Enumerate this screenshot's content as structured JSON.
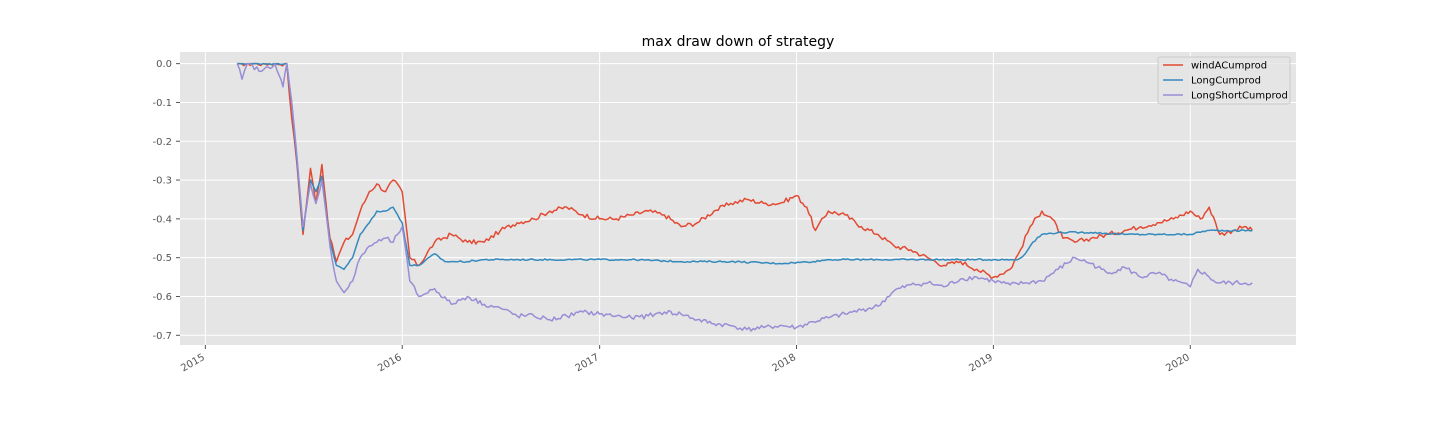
{
  "chart_data": {
    "type": "line",
    "title": "max draw down of strategy",
    "xlabel": "",
    "ylabel": "",
    "x_ticks": [
      "2015",
      "2016",
      "2017",
      "2018",
      "2019",
      "2020"
    ],
    "y_ticks": [
      "0.0",
      "-0.1",
      "-0.2",
      "-0.3",
      "-0.4",
      "-0.5",
      "-0.6",
      "-0.7"
    ],
    "xlim": [
      "2014-11-15",
      "2020-07-15"
    ],
    "ylim": [
      -0.725,
      0.03
    ],
    "grid": true,
    "legend_position": "top-right",
    "series": [
      {
        "name": "windACumprod",
        "color": "#e24a33",
        "points": [
          [
            "2015-03-01",
            0.0
          ],
          [
            "2015-06-01",
            0.0
          ],
          [
            "2015-06-10",
            -0.14
          ],
          [
            "2015-06-20",
            -0.26
          ],
          [
            "2015-07-01",
            -0.44
          ],
          [
            "2015-07-15",
            -0.27
          ],
          [
            "2015-07-25",
            -0.36
          ],
          [
            "2015-08-05",
            -0.26
          ],
          [
            "2015-08-20",
            -0.45
          ],
          [
            "2015-09-01",
            -0.51
          ],
          [
            "2015-09-15",
            -0.46
          ],
          [
            "2015-10-01",
            -0.44
          ],
          [
            "2015-10-15",
            -0.38
          ],
          [
            "2015-11-01",
            -0.33
          ],
          [
            "2015-11-15",
            -0.31
          ],
          [
            "2015-12-01",
            -0.33
          ],
          [
            "2015-12-15",
            -0.3
          ],
          [
            "2016-01-01",
            -0.33
          ],
          [
            "2016-01-15",
            -0.5
          ],
          [
            "2016-02-01",
            -0.52
          ],
          [
            "2016-03-01",
            -0.46
          ],
          [
            "2016-04-01",
            -0.44
          ],
          [
            "2016-05-01",
            -0.46
          ],
          [
            "2016-06-01",
            -0.46
          ],
          [
            "2016-07-01",
            -0.43
          ],
          [
            "2016-08-01",
            -0.41
          ],
          [
            "2016-09-01",
            -0.4
          ],
          [
            "2016-10-01",
            -0.38
          ],
          [
            "2016-11-01",
            -0.37
          ],
          [
            "2016-12-01",
            -0.39
          ],
          [
            "2017-01-01",
            -0.4
          ],
          [
            "2017-02-01",
            -0.4
          ],
          [
            "2017-03-01",
            -0.39
          ],
          [
            "2017-04-01",
            -0.38
          ],
          [
            "2017-05-01",
            -0.39
          ],
          [
            "2017-06-01",
            -0.42
          ],
          [
            "2017-07-01",
            -0.41
          ],
          [
            "2017-08-01",
            -0.38
          ],
          [
            "2017-09-01",
            -0.36
          ],
          [
            "2017-10-01",
            -0.35
          ],
          [
            "2017-11-01",
            -0.36
          ],
          [
            "2017-12-01",
            -0.36
          ],
          [
            "2018-01-01",
            -0.34
          ],
          [
            "2018-01-20",
            -0.37
          ],
          [
            "2018-02-05",
            -0.43
          ],
          [
            "2018-03-01",
            -0.38
          ],
          [
            "2018-04-01",
            -0.39
          ],
          [
            "2018-05-01",
            -0.42
          ],
          [
            "2018-06-01",
            -0.44
          ],
          [
            "2018-07-01",
            -0.47
          ],
          [
            "2018-08-01",
            -0.48
          ],
          [
            "2018-09-01",
            -0.5
          ],
          [
            "2018-10-01",
            -0.52
          ],
          [
            "2018-11-01",
            -0.51
          ],
          [
            "2018-12-01",
            -0.53
          ],
          [
            "2019-01-01",
            -0.55
          ],
          [
            "2019-02-01",
            -0.53
          ],
          [
            "2019-02-20",
            -0.48
          ],
          [
            "2019-03-10",
            -0.42
          ],
          [
            "2019-04-01",
            -0.38
          ],
          [
            "2019-04-20",
            -0.4
          ],
          [
            "2019-05-10",
            -0.45
          ],
          [
            "2019-06-01",
            -0.46
          ],
          [
            "2019-07-01",
            -0.45
          ],
          [
            "2019-08-01",
            -0.44
          ],
          [
            "2019-09-01",
            -0.43
          ],
          [
            "2019-10-01",
            -0.42
          ],
          [
            "2019-11-01",
            -0.41
          ],
          [
            "2019-12-01",
            -0.4
          ],
          [
            "2020-01-01",
            -0.38
          ],
          [
            "2020-01-20",
            -0.4
          ],
          [
            "2020-02-05",
            -0.37
          ],
          [
            "2020-02-25",
            -0.44
          ],
          [
            "2020-03-20",
            -0.43
          ],
          [
            "2020-04-10",
            -0.42
          ],
          [
            "2020-04-25",
            -0.43
          ]
        ]
      },
      {
        "name": "LongCumprod",
        "color": "#348abd",
        "points": [
          [
            "2015-03-01",
            0.0
          ],
          [
            "2015-06-01",
            0.0
          ],
          [
            "2015-06-10",
            -0.1
          ],
          [
            "2015-06-20",
            -0.25
          ],
          [
            "2015-07-01",
            -0.43
          ],
          [
            "2015-07-15",
            -0.3
          ],
          [
            "2015-07-25",
            -0.33
          ],
          [
            "2015-08-05",
            -0.29
          ],
          [
            "2015-08-20",
            -0.46
          ],
          [
            "2015-09-01",
            -0.52
          ],
          [
            "2015-09-15",
            -0.53
          ],
          [
            "2015-10-01",
            -0.5
          ],
          [
            "2015-10-15",
            -0.44
          ],
          [
            "2015-11-01",
            -0.41
          ],
          [
            "2015-11-15",
            -0.38
          ],
          [
            "2015-12-01",
            -0.38
          ],
          [
            "2015-12-15",
            -0.37
          ],
          [
            "2016-01-01",
            -0.41
          ],
          [
            "2016-01-15",
            -0.52
          ],
          [
            "2016-02-01",
            -0.52
          ],
          [
            "2016-03-01",
            -0.49
          ],
          [
            "2016-03-20",
            -0.51
          ],
          [
            "2016-04-01",
            -0.51
          ],
          [
            "2016-05-01",
            -0.51
          ],
          [
            "2016-06-01",
            -0.505
          ],
          [
            "2016-07-01",
            -0.505
          ],
          [
            "2016-09-01",
            -0.505
          ],
          [
            "2016-12-01",
            -0.505
          ],
          [
            "2017-03-01",
            -0.505
          ],
          [
            "2017-06-01",
            -0.51
          ],
          [
            "2017-09-01",
            -0.51
          ],
          [
            "2017-12-01",
            -0.515
          ],
          [
            "2018-02-01",
            -0.51
          ],
          [
            "2018-03-01",
            -0.505
          ],
          [
            "2018-06-01",
            -0.505
          ],
          [
            "2018-09-01",
            -0.505
          ],
          [
            "2018-12-01",
            -0.505
          ],
          [
            "2019-01-01",
            -0.505
          ],
          [
            "2019-02-15",
            -0.505
          ],
          [
            "2019-03-01",
            -0.49
          ],
          [
            "2019-03-15",
            -0.46
          ],
          [
            "2019-04-01",
            -0.44
          ],
          [
            "2019-05-01",
            -0.435
          ],
          [
            "2019-07-01",
            -0.435
          ],
          [
            "2019-09-01",
            -0.44
          ],
          [
            "2019-11-01",
            -0.44
          ],
          [
            "2020-01-01",
            -0.44
          ],
          [
            "2020-02-01",
            -0.43
          ],
          [
            "2020-04-25",
            -0.43
          ]
        ]
      },
      {
        "name": "LongShortCumprod",
        "color": "#988ed5",
        "points": [
          [
            "2015-03-01",
            0.0
          ],
          [
            "2015-03-10",
            -0.04
          ],
          [
            "2015-03-20",
            0.0
          ],
          [
            "2015-04-15",
            -0.02
          ],
          [
            "2015-05-10",
            0.0
          ],
          [
            "2015-05-25",
            -0.06
          ],
          [
            "2015-06-01",
            0.0
          ],
          [
            "2015-06-10",
            -0.1
          ],
          [
            "2015-06-20",
            -0.24
          ],
          [
            "2015-07-01",
            -0.42
          ],
          [
            "2015-07-15",
            -0.31
          ],
          [
            "2015-07-25",
            -0.36
          ],
          [
            "2015-08-05",
            -0.3
          ],
          [
            "2015-08-20",
            -0.47
          ],
          [
            "2015-09-01",
            -0.56
          ],
          [
            "2015-09-15",
            -0.59
          ],
          [
            "2015-10-01",
            -0.56
          ],
          [
            "2015-10-15",
            -0.5
          ],
          [
            "2015-11-01",
            -0.47
          ],
          [
            "2015-11-15",
            -0.46
          ],
          [
            "2015-12-01",
            -0.45
          ],
          [
            "2015-12-15",
            -0.46
          ],
          [
            "2016-01-01",
            -0.42
          ],
          [
            "2016-01-15",
            -0.56
          ],
          [
            "2016-02-01",
            -0.6
          ],
          [
            "2016-03-01",
            -0.58
          ],
          [
            "2016-04-01",
            -0.62
          ],
          [
            "2016-05-01",
            -0.6
          ],
          [
            "2016-06-01",
            -0.62
          ],
          [
            "2016-07-01",
            -0.63
          ],
          [
            "2016-08-01",
            -0.65
          ],
          [
            "2016-09-01",
            -0.65
          ],
          [
            "2016-10-01",
            -0.66
          ],
          [
            "2016-11-01",
            -0.65
          ],
          [
            "2016-12-01",
            -0.64
          ],
          [
            "2017-01-01",
            -0.645
          ],
          [
            "2017-02-01",
            -0.65
          ],
          [
            "2017-03-01",
            -0.655
          ],
          [
            "2017-04-01",
            -0.65
          ],
          [
            "2017-05-01",
            -0.64
          ],
          [
            "2017-06-01",
            -0.645
          ],
          [
            "2017-07-01",
            -0.66
          ],
          [
            "2017-08-01",
            -0.67
          ],
          [
            "2017-09-01",
            -0.675
          ],
          [
            "2017-10-01",
            -0.685
          ],
          [
            "2017-11-01",
            -0.68
          ],
          [
            "2017-12-01",
            -0.675
          ],
          [
            "2018-01-01",
            -0.68
          ],
          [
            "2018-02-01",
            -0.665
          ],
          [
            "2018-03-01",
            -0.655
          ],
          [
            "2018-04-01",
            -0.645
          ],
          [
            "2018-05-01",
            -0.635
          ],
          [
            "2018-06-01",
            -0.625
          ],
          [
            "2018-07-01",
            -0.585
          ],
          [
            "2018-08-01",
            -0.57
          ],
          [
            "2018-09-01",
            -0.565
          ],
          [
            "2018-10-01",
            -0.575
          ],
          [
            "2018-11-01",
            -0.555
          ],
          [
            "2018-12-01",
            -0.55
          ],
          [
            "2019-01-01",
            -0.56
          ],
          [
            "2019-02-01",
            -0.57
          ],
          [
            "2019-03-01",
            -0.565
          ],
          [
            "2019-04-01",
            -0.56
          ],
          [
            "2019-05-01",
            -0.53
          ],
          [
            "2019-06-01",
            -0.5
          ],
          [
            "2019-07-01",
            -0.515
          ],
          [
            "2019-08-01",
            -0.54
          ],
          [
            "2019-09-01",
            -0.525
          ],
          [
            "2019-10-01",
            -0.55
          ],
          [
            "2019-11-01",
            -0.54
          ],
          [
            "2019-12-01",
            -0.56
          ],
          [
            "2020-01-01",
            -0.575
          ],
          [
            "2020-01-15",
            -0.53
          ],
          [
            "2020-02-05",
            -0.55
          ],
          [
            "2020-02-20",
            -0.565
          ],
          [
            "2020-04-25",
            -0.565
          ]
        ]
      }
    ]
  }
}
